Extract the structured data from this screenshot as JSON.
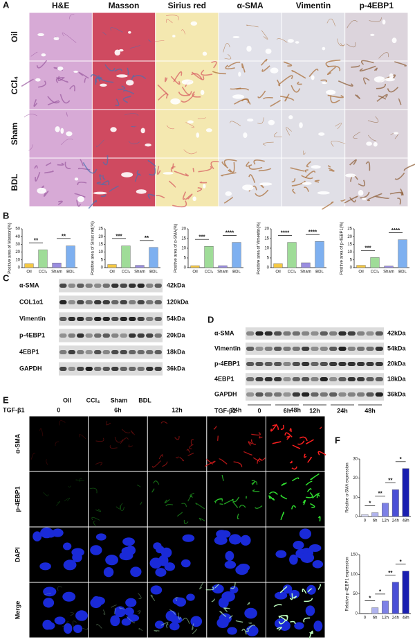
{
  "panel_letters": [
    "A",
    "B",
    "C",
    "D",
    "E",
    "F"
  ],
  "panel_a": {
    "columns": [
      "H&E",
      "Masson",
      "Sirius red",
      "α-SMA",
      "Vimentin",
      "p-4EBP1"
    ],
    "rows": [
      "Oil",
      "CCl₄",
      "Sham",
      "BDL"
    ]
  },
  "panel_c": {
    "proteins": [
      "α-SMA",
      "COL1α1",
      "Vimentin",
      "p-4EBP1",
      "4EBP1",
      "GAPDH"
    ],
    "sizes": [
      "42kDa",
      "120kDa",
      "54kDa",
      "20kDa",
      "18kDa",
      "36kDa"
    ],
    "groups": [
      "Oil",
      "CCl₄",
      "Sham",
      "BDL"
    ]
  },
  "panel_d": {
    "proteins": [
      "α-SMA",
      "Vimentin",
      "p-4EBP1",
      "4EBP1",
      "GAPDH"
    ],
    "sizes": [
      "42kDa",
      "54kDa",
      "20kDa",
      "18kDa",
      "36kDa"
    ],
    "treatment": "TGF-β1",
    "times": [
      "0",
      "6h",
      "12h",
      "24h",
      "48h"
    ]
  },
  "panel_e": {
    "treatment": "TGF-β1",
    "times": [
      "0",
      "6h",
      "12h",
      "24h",
      "48h"
    ],
    "rows": [
      "α-SMA",
      "p-4EBP1",
      "DAPI",
      "Merge"
    ]
  },
  "chart_data": [
    {
      "type": "bar",
      "y_label": "Positive area of Masson(%)",
      "categories": [
        "Oil",
        "CCl₄",
        "Sham",
        "BDL"
      ],
      "values": [
        5,
        23,
        6,
        28
      ],
      "colors": [
        "#f5c842",
        "#9fdc98",
        "#9a8de0",
        "#7eb0f0"
      ],
      "ylim": [
        0,
        50
      ],
      "yticks": [
        0,
        10,
        20,
        30,
        40,
        50
      ],
      "annotations": [
        {
          "text": "**",
          "between": [
            "Oil",
            "CCl₄"
          ]
        },
        {
          "text": "**",
          "between": [
            "Sham",
            "BDL"
          ]
        }
      ]
    },
    {
      "type": "bar",
      "y_label": "Positive area of Sirius red(%)",
      "categories": [
        "Oil",
        "CCl₄",
        "Sham",
        "BDL"
      ],
      "values": [
        2,
        14,
        1.5,
        13
      ],
      "colors": [
        "#f5c842",
        "#9fdc98",
        "#9a8de0",
        "#7eb0f0"
      ],
      "ylim": [
        0,
        25
      ],
      "yticks": [
        0,
        5,
        10,
        15,
        20,
        25
      ],
      "annotations": [
        {
          "text": "***",
          "between": [
            "Oil",
            "CCl₄"
          ]
        },
        {
          "text": "**",
          "between": [
            "Sham",
            "BDL"
          ]
        }
      ]
    },
    {
      "type": "bar",
      "y_label": "Positive area of α-SMA(%)",
      "categories": [
        "Oil",
        "CCl₄",
        "Sham",
        "BDL"
      ],
      "values": [
        1,
        11,
        1,
        13
      ],
      "colors": [
        "#f5c842",
        "#9fdc98",
        "#9a8de0",
        "#7eb0f0"
      ],
      "ylim": [
        0,
        20
      ],
      "yticks": [
        0,
        5,
        10,
        15,
        20
      ],
      "annotations": [
        {
          "text": "***",
          "between": [
            "Oil",
            "CCl₄"
          ]
        },
        {
          "text": "****",
          "between": [
            "Sham",
            "BDL"
          ]
        }
      ]
    },
    {
      "type": "bar",
      "y_label": "Positive area of Vimentin(%)",
      "categories": [
        "Oil",
        "CCl₄",
        "Sham",
        "BDL"
      ],
      "values": [
        2,
        13,
        2.5,
        13.5
      ],
      "colors": [
        "#f5c842",
        "#9fdc98",
        "#9a8de0",
        "#7eb0f0"
      ],
      "ylim": [
        0,
        20
      ],
      "yticks": [
        0,
        5,
        10,
        15,
        20
      ],
      "annotations": [
        {
          "text": "****",
          "between": [
            "Oil",
            "CCl₄"
          ]
        },
        {
          "text": "****",
          "between": [
            "Sham",
            "BDL"
          ]
        }
      ]
    },
    {
      "type": "bar",
      "y_label": "Positive area of p-4EBP1(%)",
      "categories": [
        "Oil",
        "CCl₄",
        "Sham",
        "BDL"
      ],
      "values": [
        1.5,
        6.5,
        1,
        18
      ],
      "colors": [
        "#f5c842",
        "#9fdc98",
        "#9a8de0",
        "#7eb0f0"
      ],
      "ylim": [
        0,
        25
      ],
      "yticks": [
        0,
        5,
        10,
        15,
        20,
        25
      ],
      "annotations": [
        {
          "text": "***",
          "between": [
            "Oil",
            "CCl₄"
          ]
        },
        {
          "text": "****",
          "between": [
            "Sham",
            "BDL"
          ]
        }
      ]
    },
    {
      "type": "bar",
      "y_label": "Relative α-SMA expression",
      "categories": [
        "0",
        "6h",
        "12h",
        "24h",
        "48h"
      ],
      "values": [
        1,
        2,
        7,
        14,
        25
      ],
      "colors": [
        "#d6d8f5",
        "#b0b3ee",
        "#7c80e6",
        "#4a4fd6",
        "#1a1fb0"
      ],
      "ylim": [
        0,
        30
      ],
      "yticks": [
        0,
        10,
        20,
        30
      ],
      "annotations": [
        {
          "text": "*",
          "between": [
            "0",
            "6h"
          ]
        },
        {
          "text": "**",
          "between": [
            "6h",
            "12h"
          ]
        },
        {
          "text": "**",
          "between": [
            "12h",
            "24h"
          ]
        },
        {
          "text": "*",
          "between": [
            "24h",
            "48h"
          ]
        }
      ]
    },
    {
      "type": "bar",
      "y_label": "Relative p-4EBP1 expression",
      "categories": [
        "0",
        "6h",
        "12h",
        "24h",
        "48h"
      ],
      "values": [
        1,
        15,
        32,
        80,
        108
      ],
      "colors": [
        "#d6d8f5",
        "#b0b3ee",
        "#7c80e6",
        "#4a4fd6",
        "#1a1fb0"
      ],
      "ylim": [
        0,
        150
      ],
      "yticks": [
        0,
        50,
        100,
        150
      ],
      "annotations": [
        {
          "text": "*",
          "between": [
            "0",
            "6h"
          ]
        },
        {
          "text": "*",
          "between": [
            "6h",
            "12h"
          ]
        },
        {
          "text": "**",
          "between": [
            "12h",
            "24h"
          ]
        },
        {
          "text": "*",
          "between": [
            "24h",
            "48h"
          ]
        }
      ]
    }
  ]
}
